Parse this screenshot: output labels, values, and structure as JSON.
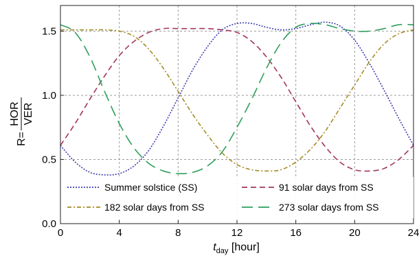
{
  "chart_data": {
    "type": "line",
    "xlabel": "t",
    "xlabel_sub": "day",
    "xlabel_unit": " [hour]",
    "ylabel_prefix": "R=",
    "ylabel_numerator": "HOR",
    "ylabel_denominator": "VER",
    "xlim": [
      0,
      24
    ],
    "ylim": [
      0,
      1.7
    ],
    "xticks": [
      0,
      4,
      8,
      12,
      16,
      20,
      24
    ],
    "xtick_labels": [
      "0",
      "4",
      "8",
      "12",
      "16",
      "20",
      "24"
    ],
    "yticks": [
      0,
      0.5,
      1.0,
      1.5
    ],
    "ytick_labels": [
      "0.0",
      "0.5",
      "1.0",
      "1.5"
    ],
    "grid": true,
    "legend_position": "bottom",
    "series": [
      {
        "name": "Summer solstice (SS)",
        "color": "#3b3bb0",
        "dash": "dotted",
        "x": [
          0,
          1,
          2,
          3,
          4,
          5,
          6,
          7,
          8,
          9,
          10,
          11,
          12,
          13,
          14,
          15,
          16,
          17,
          18,
          19,
          20,
          21,
          22,
          23,
          24
        ],
        "y": [
          0.61,
          0.48,
          0.4,
          0.38,
          0.39,
          0.45,
          0.57,
          0.76,
          0.98,
          1.2,
          1.38,
          1.51,
          1.56,
          1.56,
          1.53,
          1.51,
          1.52,
          1.55,
          1.57,
          1.54,
          1.43,
          1.25,
          1.04,
          0.82,
          0.61
        ]
      },
      {
        "name": "91 solar days from SS",
        "color": "#a3335e",
        "dash": "dashed",
        "x": [
          0,
          1,
          2,
          3,
          4,
          5,
          6,
          7,
          8,
          9,
          10,
          11,
          12,
          13,
          14,
          15,
          16,
          17,
          18,
          19,
          20,
          21,
          22,
          23,
          24
        ],
        "y": [
          0.61,
          0.78,
          0.97,
          1.15,
          1.31,
          1.42,
          1.49,
          1.52,
          1.52,
          1.52,
          1.52,
          1.51,
          1.49,
          1.42,
          1.3,
          1.14,
          0.95,
          0.76,
          0.6,
          0.48,
          0.42,
          0.41,
          0.43,
          0.5,
          0.61
        ]
      },
      {
        "name": "182 solar days from SS",
        "color": "#a58a22",
        "dash": "dashdot",
        "x": [
          0,
          1,
          2,
          3,
          4,
          5,
          6,
          7,
          8,
          9,
          10,
          11,
          12,
          13,
          14,
          15,
          16,
          17,
          18,
          19,
          20,
          21,
          22,
          23,
          24
        ],
        "y": [
          1.51,
          1.51,
          1.51,
          1.51,
          1.5,
          1.46,
          1.36,
          1.21,
          1.03,
          0.85,
          0.69,
          0.55,
          0.46,
          0.42,
          0.41,
          0.42,
          0.48,
          0.58,
          0.72,
          0.9,
          1.08,
          1.26,
          1.4,
          1.48,
          1.51
        ]
      },
      {
        "name": "273 solar days from SS",
        "color": "#2e9e5c",
        "dash": "longdash",
        "x": [
          0,
          1,
          2,
          3,
          4,
          5,
          6,
          7,
          8,
          9,
          10,
          11,
          12,
          13,
          14,
          15,
          16,
          17,
          18,
          19,
          20,
          21,
          22,
          23,
          24
        ],
        "y": [
          1.55,
          1.49,
          1.3,
          1.03,
          0.78,
          0.59,
          0.47,
          0.41,
          0.39,
          0.4,
          0.45,
          0.56,
          0.75,
          0.97,
          1.21,
          1.41,
          1.53,
          1.56,
          1.55,
          1.52,
          1.5,
          1.5,
          1.52,
          1.55,
          1.55
        ]
      }
    ]
  }
}
